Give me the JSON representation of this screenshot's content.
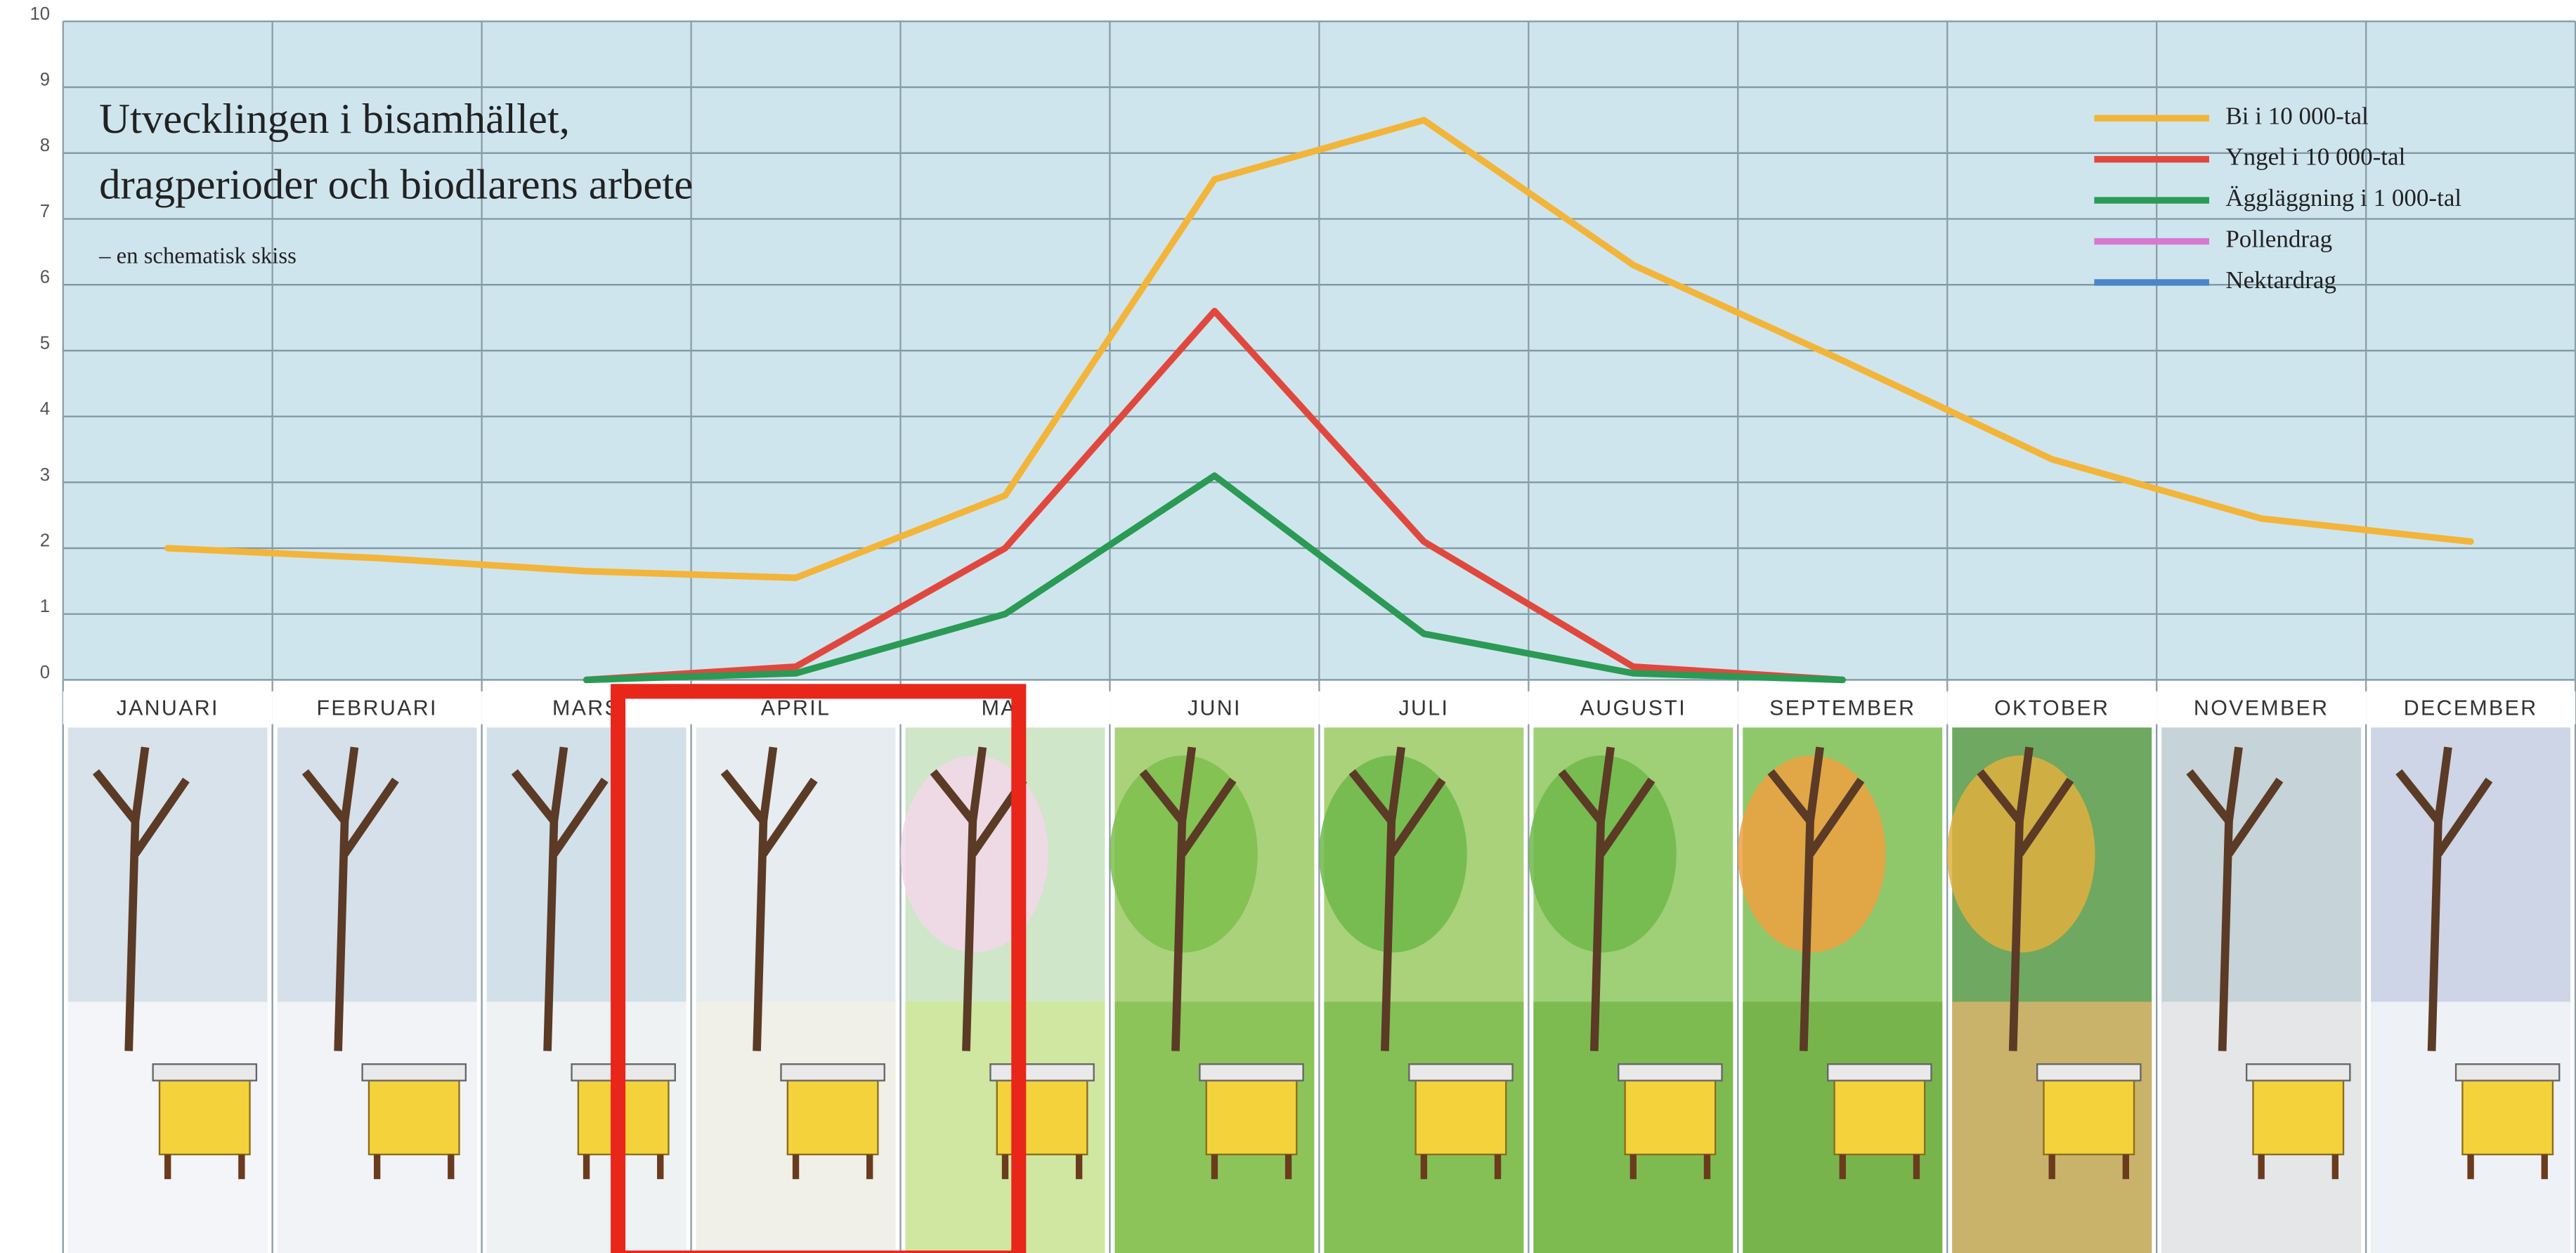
{
  "chart_data": {
    "type": "line",
    "title": [
      "Utvecklingen i bisamhället,",
      "dragperioder och biodlarens arbete"
    ],
    "subtitle": "– en schematisk skiss",
    "categories": [
      "JANUARI",
      "FEBRUARI",
      "MARS",
      "APRIL",
      "MAJ",
      "JUNI",
      "JULI",
      "AUGUSTI",
      "SEPTEMBER",
      "OKTOBER",
      "NOVEMBER",
      "DECEMBER"
    ],
    "series": [
      {
        "name": "Bi i 10 000-tal",
        "color": "#f2b53a",
        "values": [
          2.0,
          1.85,
          1.65,
          1.55,
          2.8,
          7.6,
          8.5,
          6.3,
          4.85,
          3.35,
          2.45,
          2.1
        ]
      },
      {
        "name": "Yngel i 10 000-tal",
        "color": "#e0483e",
        "values": [
          null,
          null,
          0,
          0.2,
          2.0,
          5.6,
          2.1,
          0.2,
          0,
          null,
          null,
          null
        ]
      },
      {
        "name": "Äggläggning i 1 000-tal",
        "color": "#2a9a55",
        "values": [
          null,
          null,
          0,
          0.1,
          1.0,
          3.1,
          0.7,
          0.1,
          0,
          null,
          null,
          null
        ]
      },
      {
        "name": "Pollendrag",
        "color": "#d67ad0",
        "values": [
          null,
          null,
          null,
          null,
          null,
          null,
          null,
          null,
          null,
          null,
          null,
          null
        ]
      },
      {
        "name": "Nektardrag",
        "color": "#4a86c8",
        "values": [
          null,
          null,
          null,
          null,
          null,
          null,
          null,
          null,
          null,
          null,
          null,
          null
        ]
      }
    ],
    "ylim": [
      0,
      10
    ],
    "yticks": [
      0,
      1,
      2,
      3,
      4,
      5,
      6,
      7,
      8,
      9,
      10
    ],
    "grid": true,
    "legend": "top-right"
  }
}
